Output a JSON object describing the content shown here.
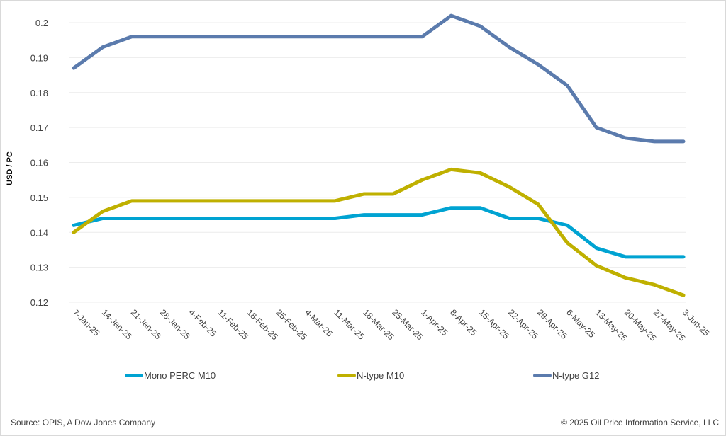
{
  "chart_data": {
    "type": "line",
    "title": "",
    "xlabel": "",
    "ylabel": "USD / PC",
    "ylim": [
      0.12,
      0.2
    ],
    "yticks": [
      "0.12",
      "0.13",
      "0.14",
      "0.15",
      "0.16",
      "0.17",
      "0.18",
      "0.19",
      "0.2"
    ],
    "grid": true,
    "legend_position": "bottom",
    "categories": [
      "7-Jan-25",
      "14-Jan-25",
      "21-Jan-25",
      "28-Jan-25",
      "4-Feb-25",
      "11-Feb-25",
      "18-Feb-25",
      "25-Feb-25",
      "4-Mar-25",
      "11-Mar-25",
      "18-Mar-25",
      "25-Mar-25",
      "1-Apr-25",
      "8-Apr-25",
      "15-Apr-25",
      "22-Apr-25",
      "29-Apr-25",
      "6-May-25",
      "13-May-25",
      "20-May-25",
      "27-May-25",
      "3-Jun-25"
    ],
    "series": [
      {
        "name": "Mono PERC M10",
        "color": "#00a3d2",
        "values": [
          0.142,
          0.144,
          0.144,
          0.144,
          0.144,
          0.144,
          0.144,
          0.144,
          0.144,
          0.144,
          0.145,
          0.145,
          0.145,
          0.147,
          0.147,
          0.144,
          0.144,
          0.142,
          0.1355,
          0.133,
          0.133,
          0.133
        ]
      },
      {
        "name": "N-type M10",
        "color": "#bfb000",
        "values": [
          0.14,
          0.146,
          0.149,
          0.149,
          0.149,
          0.149,
          0.149,
          0.149,
          0.149,
          0.149,
          0.151,
          0.151,
          0.155,
          0.158,
          0.157,
          0.153,
          0.148,
          0.137,
          0.1305,
          0.127,
          0.125,
          0.122
        ]
      },
      {
        "name": "N-type G12",
        "color": "#5b7bad",
        "values": [
          0.187,
          0.193,
          0.196,
          0.196,
          0.196,
          0.196,
          0.196,
          0.196,
          0.196,
          0.196,
          0.196,
          0.196,
          0.196,
          0.202,
          0.199,
          0.193,
          0.188,
          0.182,
          0.17,
          0.167,
          0.166,
          0.166
        ]
      }
    ]
  },
  "footer": {
    "source": "Source: OPIS, A Dow Jones Company",
    "copyright": "© 2025 Oil Price Information Service, LLC"
  }
}
